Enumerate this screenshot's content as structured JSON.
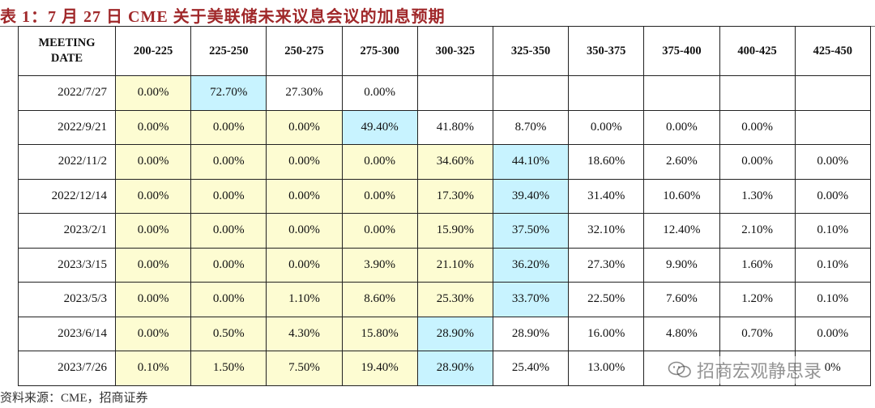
{
  "title": "表 1：7 月 27 日 CME 关于美联储未来议息会议的加息预期",
  "table": {
    "headers": [
      "MEETING DATE",
      "200-225",
      "225-250",
      "250-275",
      "275-300",
      "300-325",
      "325-350",
      "350-375",
      "375-400",
      "400-425",
      "425-450"
    ],
    "rows": [
      {
        "date": "2022/7/27",
        "cells": [
          "0.00%",
          "72.70%",
          "27.30%",
          "0.00%",
          "",
          "",
          "",
          "",
          "",
          ""
        ],
        "fills": [
          "y",
          "b",
          "",
          "",
          "",
          "",
          "",
          "",
          "",
          ""
        ]
      },
      {
        "date": "2022/9/21",
        "cells": [
          "0.00%",
          "0.00%",
          "0.00%",
          "49.40%",
          "41.80%",
          "8.70%",
          "0.00%",
          "0.00%",
          "0.00%",
          ""
        ],
        "fills": [
          "y",
          "y",
          "y",
          "b",
          "",
          "",
          "",
          "",
          "",
          ""
        ]
      },
      {
        "date": "2022/11/2",
        "cells": [
          "0.00%",
          "0.00%",
          "0.00%",
          "0.00%",
          "34.60%",
          "44.10%",
          "18.60%",
          "2.60%",
          "0.00%",
          "0.00%"
        ],
        "fills": [
          "y",
          "y",
          "y",
          "y",
          "y",
          "b",
          "",
          "",
          "",
          ""
        ]
      },
      {
        "date": "2022/12/14",
        "cells": [
          "0.00%",
          "0.00%",
          "0.00%",
          "0.00%",
          "17.30%",
          "39.40%",
          "31.40%",
          "10.60%",
          "1.30%",
          "0.00%"
        ],
        "fills": [
          "y",
          "y",
          "y",
          "y",
          "y",
          "b",
          "",
          "",
          "",
          ""
        ]
      },
      {
        "date": "2023/2/1",
        "cells": [
          "0.00%",
          "0.00%",
          "0.00%",
          "0.00%",
          "15.90%",
          "37.50%",
          "32.10%",
          "12.40%",
          "2.10%",
          "0.10%"
        ],
        "fills": [
          "y",
          "y",
          "y",
          "y",
          "y",
          "b",
          "",
          "",
          "",
          ""
        ]
      },
      {
        "date": "2023/3/15",
        "cells": [
          "0.00%",
          "0.00%",
          "0.00%",
          "3.90%",
          "21.10%",
          "36.20%",
          "27.30%",
          "9.90%",
          "1.60%",
          "0.10%"
        ],
        "fills": [
          "y",
          "y",
          "y",
          "y",
          "y",
          "b",
          "",
          "",
          "",
          ""
        ]
      },
      {
        "date": "2023/5/3",
        "cells": [
          "0.00%",
          "0.00%",
          "1.10%",
          "8.60%",
          "25.30%",
          "33.70%",
          "22.50%",
          "7.60%",
          "1.20%",
          "0.10%"
        ],
        "fills": [
          "y",
          "y",
          "y",
          "y",
          "y",
          "b",
          "",
          "",
          "",
          ""
        ]
      },
      {
        "date": "2023/6/14",
        "cells": [
          "0.00%",
          "0.50%",
          "4.30%",
          "15.80%",
          "28.90%",
          "28.90%",
          "16.00%",
          "4.80%",
          "0.70%",
          "0.00%"
        ],
        "fills": [
          "y",
          "y",
          "y",
          "y",
          "b",
          "",
          "",
          "",
          "",
          ""
        ]
      },
      {
        "date": "2023/7/26",
        "cells": [
          "0.10%",
          "1.50%",
          "7.50%",
          "19.40%",
          "28.90%",
          "25.40%",
          "13.00%",
          "",
          "",
          "0%"
        ],
        "fills": [
          "y",
          "y",
          "y",
          "y",
          "b",
          "",
          "",
          "",
          "",
          ""
        ]
      }
    ]
  },
  "source": "资料来源：CME，招商证券",
  "watermark": "招商宏观静思录",
  "colors": {
    "title": "#a0282a",
    "yellow_fill": "#fdfcd2",
    "blue_fill": "#c8f3ff"
  }
}
